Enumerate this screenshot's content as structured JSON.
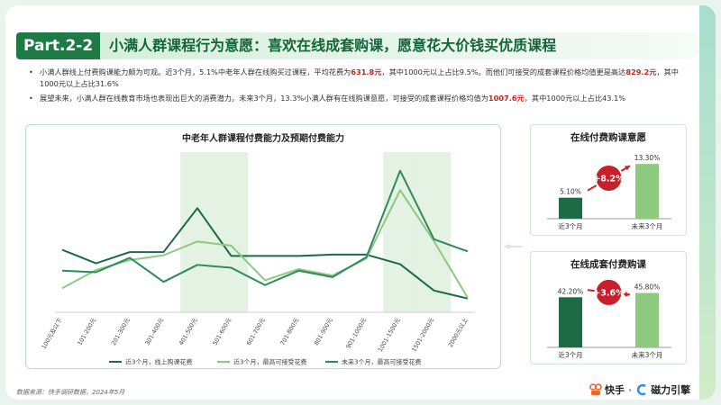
{
  "header": {
    "badge": "Part.2-2",
    "title": "小满人群课程行为意愿：喜欢在线成套购课，愿意花大价钱买优质课程"
  },
  "bullets": [
    {
      "text_before": "小满人群线上付费购课能力颇为可观。近3个月，5.1%中老年人群在线购买过课程，平均花费为",
      "highlight1": "631.8元",
      "text_middle": "，其中1000元以上占比9.5%。而他们可接受的成套课程价格均值更是高达",
      "highlight2": "829.2元",
      "text_after": "，其中1000元以上占比31.6%"
    },
    {
      "text_before": "展望未来，小满人群在线教育市场也表现出巨大的消费潜力。未来3个月，13.3%小满人群有在线购课意愿，可接受的成套课程价格均值为",
      "highlight1": "1007.6元",
      "text_after": "，其中1000元以上占比43.1%"
    }
  ],
  "colors": {
    "dark_green": "#1d6b43",
    "light_green": "#8dca7f",
    "mid_green": "#2e8a58",
    "band": "#e3f2e2",
    "arrow_red": "#c8202a"
  },
  "chart_data": [
    {
      "type": "line",
      "title": "中老年人群课程付费能力及预期付费能力",
      "categories": [
        "100元及以下",
        "101-200元",
        "201-300元",
        "301-400元",
        "401-500元",
        "501-600元",
        "601-700元",
        "701-800元",
        "801-900元",
        "901-1000元",
        "1001-1500元",
        "1501-2000元",
        "2000元以上"
      ],
      "highlight_categories": [
        "401-500元",
        "501-600元",
        "1001-1500元",
        "1501-2000元"
      ],
      "series": [
        {
          "name": "近3个月，线上购课花费",
          "color": "#1d6b43",
          "values": [
            19.5,
            15.3,
            18.8,
            18.8,
            32.5,
            17.6,
            17.6,
            17.6,
            18.0,
            18.0,
            15.0,
            6.8,
            4.3
          ]
        },
        {
          "name": "近3个月，最高可接受花费",
          "color": "#8dca7f",
          "values": [
            7.5,
            13.2,
            16.3,
            17.8,
            22.1,
            20.8,
            10.0,
            13.5,
            11.5,
            16.8,
            38.1,
            22.2,
            4.5
          ]
        },
        {
          "name": "未来3个月，最高可接受花费",
          "color": "#2e8a58",
          "values": [
            13.0,
            12.5,
            17.0,
            9.5,
            14.8,
            13.9,
            8.5,
            13.0,
            11.0,
            17.2,
            44.2,
            22.8,
            19.0
          ]
        }
      ],
      "ylim": [
        0,
        50
      ]
    },
    {
      "type": "bar",
      "title": "在线付费购课意愿",
      "categories": [
        "近3个月",
        "未来3个月"
      ],
      "values": [
        5.1,
        13.3
      ],
      "value_labels": [
        "5.10%",
        "13.30%"
      ],
      "change_label": "+8.2%",
      "ylim": [
        0,
        14
      ]
    },
    {
      "type": "bar",
      "title": "在线成套付费购课",
      "categories": [
        "近3个月",
        "未来3个月"
      ],
      "values": [
        42.2,
        45.8
      ],
      "value_labels": [
        "42.20%",
        "45.80%"
      ],
      "change_label": "+3.6%",
      "ylim": [
        0,
        50
      ]
    }
  ],
  "footer": {
    "source": "数据来源：快手调研数据，2024年5月",
    "logo1": "快手",
    "separator": "·",
    "logo2": "磁力引擎"
  }
}
